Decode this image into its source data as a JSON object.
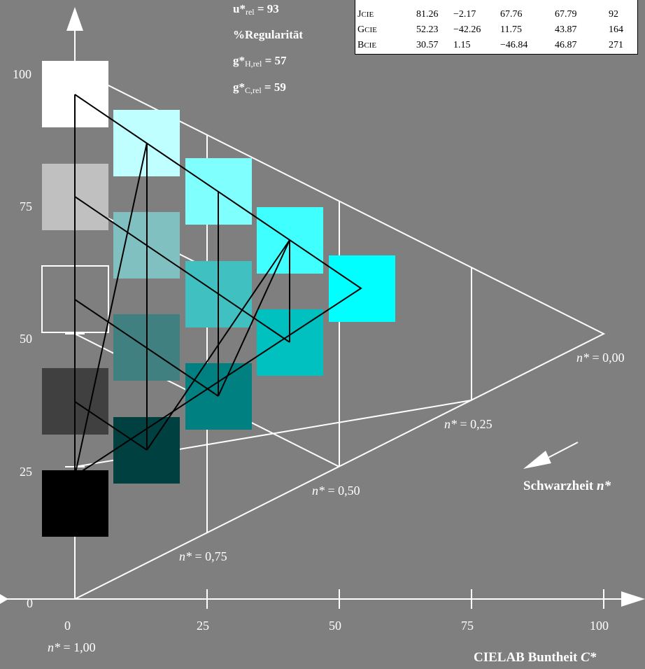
{
  "stats": {
    "u_label": "u*",
    "u_sub": "rel",
    "u_value": " = 93",
    "regularity": "%Regularität",
    "gh_label": "g*",
    "gh_sub": "H,rel",
    "gh_value": " = 57",
    "gc_label": "g*",
    "gc_sub": "C,rel",
    "gc_value": " = 59"
  },
  "table": {
    "rows": [
      {
        "name": "J",
        "sub": "CIE",
        "values": [
          "81.26",
          "−2.17",
          "67.76",
          "67.79",
          "92"
        ]
      },
      {
        "name": "G",
        "sub": "CIE",
        "values": [
          "52.23",
          "−42.26",
          "11.75",
          "43.87",
          "164"
        ]
      },
      {
        "name": "B",
        "sub": "CIE",
        "values": [
          "30.57",
          "1.15",
          "−46.84",
          "46.87",
          "271"
        ]
      }
    ]
  },
  "axes": {
    "y_ticks": [
      "0",
      "25",
      "50",
      "75",
      "100"
    ],
    "x_ticks": [
      "0",
      "25",
      "50",
      "75",
      "100"
    ],
    "x_title": "CIELAB Buntheit ",
    "x_title_var": "C*"
  },
  "blackness": {
    "title": "Schwarzheit ",
    "title_var": "n*",
    "labels": [
      {
        "var": "n*",
        "text": " = 0,00"
      },
      {
        "var": "n*",
        "text": " = 0,25"
      },
      {
        "var": "n*",
        "text": " = 0,50"
      },
      {
        "var": "n*",
        "text": " = 0,75"
      },
      {
        "var": "n*",
        "text": " = 1,00"
      }
    ]
  },
  "swatches": {
    "gray": [
      "#ffffff",
      "#c0c0c0",
      "#7f7f7f",
      "#404040",
      "#000000"
    ],
    "col1": [
      "#bfffff",
      "#80c0c0",
      "#408080",
      "#004040"
    ],
    "col2": [
      "#80ffff",
      "#40c0c0",
      "#008080"
    ],
    "col3": [
      "#40ffff",
      "#00c0c0"
    ],
    "col4": [
      "#00ffff"
    ]
  },
  "colors": {
    "background": "#7f7f7f",
    "grid": "#ffffff",
    "series_line": "#000000"
  }
}
